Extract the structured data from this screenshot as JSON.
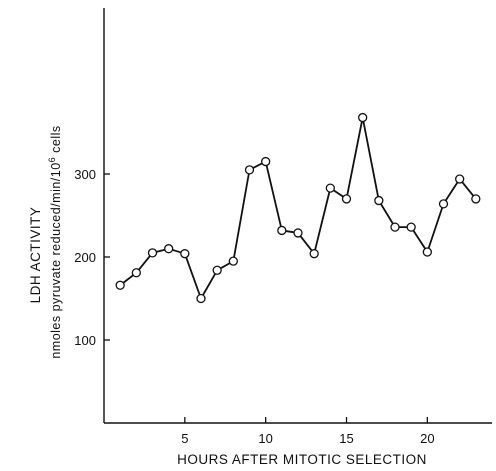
{
  "chart_data": {
    "type": "line",
    "title": "",
    "xlabel": "HOURS  AFTER  MITOTIC  SELECTION",
    "ylabel_line1": "LDH  ACTIVITY",
    "ylabel_line2": "nmoles pyruvate reduced/min/10",
    "ylabel_sup": "6",
    "ylabel_tail": " cells",
    "xlim": [
      0,
      24
    ],
    "ylim": [
      0,
      500
    ],
    "xticks": [
      5,
      10,
      15,
      20
    ],
    "yticks": [
      100,
      200,
      300
    ],
    "grid": false,
    "series": [
      {
        "x": [
          1,
          2,
          3,
          4,
          5,
          6,
          7,
          8,
          9,
          10,
          11,
          12,
          13,
          14,
          15,
          16,
          17,
          18,
          19,
          20,
          21,
          22,
          23
        ],
        "y": [
          166,
          181,
          205,
          210,
          204,
          150,
          184,
          195,
          305,
          315,
          232,
          229,
          204,
          283,
          270,
          368,
          268,
          236,
          236,
          206,
          264,
          294,
          270
        ]
      }
    ]
  }
}
